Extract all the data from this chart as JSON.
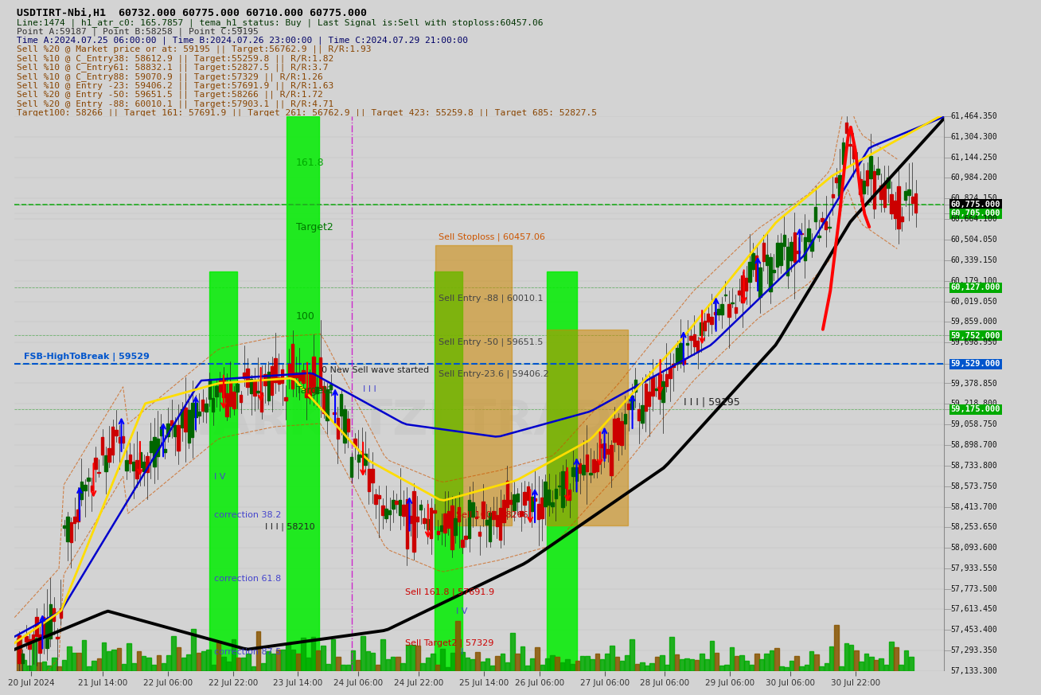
{
  "title": "USDTIRT-Nbi,H1  60732.000 60775.000 60710.000 60775.000",
  "subtitle1": "Line:1474 | h1_atr_c0: 165.7857 | tema_h1_status: Buy | Last Signal is:Sell with stoploss:60457.06",
  "subtitle2": "Point A:59187 | Point B:58258 | Point C:59195",
  "subtitle3": "Time A:2024.07.25 06:00:00 | Time B:2024.07.26 23:00:00 | Time C:2024.07.29 21:00:00",
  "subtitle4": "Sell %20 @ Market price or at: 59195 || Target:56762.9 || R/R:1.93",
  "subtitle5": "Sell %10 @ C_Entry38: 58612.9 || Target:55259.8 || R/R:1.82",
  "subtitle6": "Sell %10 @ C_Entry61: 58832.1 || Target:52827.5 || R/R:3.7",
  "subtitle7": "Sell %10 @ C_Entry88: 59070.9 || Target:57329 || R/R:1.26",
  "subtitle8": "Sell %10 @ Entry -23: 59406.2 || Target:57691.9 || R/R:1.63",
  "subtitle9": "Sell %20 @ Entry -50: 59651.5 || Target:58266 || R/R:1.72",
  "subtitle10": "Sell %20 @ Entry -88: 60010.1 || Target:57903.1 || R/R:4.71",
  "subtitle11": "Target100: 58266 || Target 161: 57691.9 || Target 261: 56762.9 || Target 423: 55259.8 || Target 685: 52827.5",
  "background_color": "#d3d3d3",
  "y_min": 57133.3,
  "y_max": 61464.35,
  "watermark": "MARKETZI TRADE",
  "price_labels": [
    {
      "value": 61464.35
    },
    {
      "value": 61304.3
    },
    {
      "value": 61144.25
    },
    {
      "value": 60984.2
    },
    {
      "value": 60824.15
    },
    {
      "value": 60775.0,
      "hl_bg": "#000000",
      "hl_fg": "#ffffff"
    },
    {
      "value": 60705.0,
      "hl_bg": "#00aa00",
      "hl_fg": "#ffffff"
    },
    {
      "value": 60664.1
    },
    {
      "value": 60504.05
    },
    {
      "value": 60339.15
    },
    {
      "value": 60179.1
    },
    {
      "value": 60127.0,
      "hl_bg": "#00aa00",
      "hl_fg": "#ffffff"
    },
    {
      "value": 60019.05
    },
    {
      "value": 59859.0
    },
    {
      "value": 59752.0,
      "hl_bg": "#00aa00",
      "hl_fg": "#ffffff"
    },
    {
      "value": 59698.95
    },
    {
      "value": 59529.0,
      "hl_bg": "#0055cc",
      "hl_fg": "#ffffff"
    },
    {
      "value": 59378.85
    },
    {
      "value": 59218.8
    },
    {
      "value": 59175.0,
      "hl_bg": "#00aa00",
      "hl_fg": "#ffffff"
    },
    {
      "value": 59058.75
    },
    {
      "value": 58898.7
    },
    {
      "value": 58733.8
    },
    {
      "value": 58573.75
    },
    {
      "value": 58413.7
    },
    {
      "value": 58253.65
    },
    {
      "value": 58093.6
    },
    {
      "value": 57933.55
    },
    {
      "value": 57773.5
    },
    {
      "value": 57613.45
    },
    {
      "value": 57453.4
    },
    {
      "value": 57293.35
    },
    {
      "value": 57133.3
    }
  ],
  "x_dates": [
    [
      0.018,
      "20 Jul 2024"
    ],
    [
      0.095,
      "21 Jul 14:00"
    ],
    [
      0.165,
      "22 Jul 06:00"
    ],
    [
      0.235,
      "22 Jul 22:00"
    ],
    [
      0.305,
      "23 Jul 14:00"
    ],
    [
      0.37,
      "24 Jul 06:00"
    ],
    [
      0.435,
      "24 Jul 22:00"
    ],
    [
      0.505,
      "25 Jul 14:00"
    ],
    [
      0.565,
      "26 Jul 06:00"
    ],
    [
      0.635,
      "27 Jul 06:00"
    ],
    [
      0.7,
      "28 Jul 06:00"
    ],
    [
      0.77,
      "29 Jul 06:00"
    ],
    [
      0.835,
      "30 Jul 06:00"
    ],
    [
      0.905,
      "30 Jul 22:00"
    ]
  ]
}
